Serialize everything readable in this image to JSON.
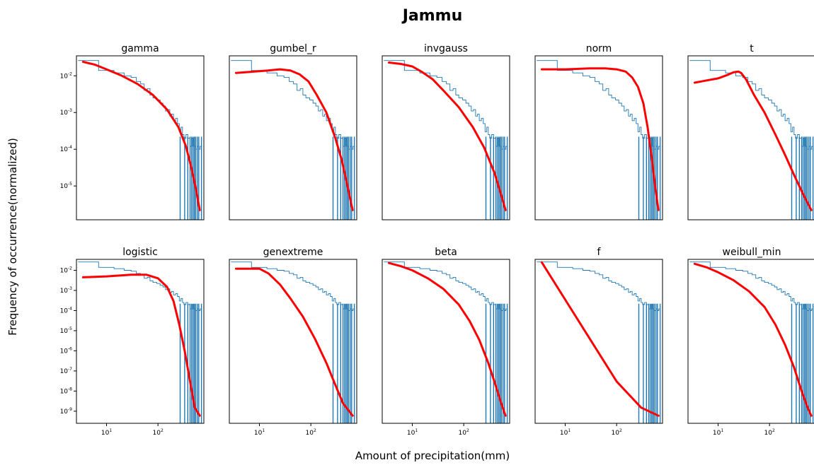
{
  "chart_data": {
    "type": "line",
    "title": "Jammu",
    "xlabel": "Amount of precipitation(mm)",
    "ylabel": "Frequency of occurrence(normalized)",
    "x_scale": "log",
    "y_scale": "log",
    "xlim": [
      2.6,
      780
    ],
    "x_ticks": [
      {
        "value": 10,
        "label": "10",
        "exp": "1"
      },
      {
        "value": 100,
        "label": "10",
        "exp": "2"
      }
    ],
    "rows": [
      {
        "ylim": [
          1.2e-06,
          0.035
        ],
        "y_ticks": [
          {
            "value": 0.01,
            "label": "10",
            "exp": "-2"
          },
          {
            "value": 0.001,
            "label": "10",
            "exp": "-3"
          },
          {
            "value": 0.0001,
            "label": "10",
            "exp": "-4"
          },
          {
            "value": 1e-05,
            "label": "10",
            "exp": "-5"
          }
        ]
      },
      {
        "ylim": [
          2.5e-10,
          0.035
        ],
        "y_ticks": [
          {
            "value": 0.01,
            "label": "10",
            "exp": "-2"
          },
          {
            "value": 0.001,
            "label": "10",
            "exp": "-3"
          },
          {
            "value": 0.0001,
            "label": "10",
            "exp": "-4"
          },
          {
            "value": 1e-05,
            "label": "10",
            "exp": "-5"
          },
          {
            "value": 1e-06,
            "label": "10",
            "exp": "-6"
          },
          {
            "value": 1e-07,
            "label": "10",
            "exp": "-7"
          },
          {
            "value": 1e-08,
            "label": "10",
            "exp": "-8"
          },
          {
            "value": 1e-09,
            "label": "10",
            "exp": "-9"
          }
        ]
      }
    ],
    "histogram": {
      "color": "#1f77b4",
      "points": [
        [
          2.8,
          0.026
        ],
        [
          7,
          0.026
        ],
        [
          7,
          0.014
        ],
        [
          14,
          0.014
        ],
        [
          14,
          0.012
        ],
        [
          22,
          0.012
        ],
        [
          22,
          0.01
        ],
        [
          30,
          0.01
        ],
        [
          30,
          0.009
        ],
        [
          38,
          0.009
        ],
        [
          38,
          0.007
        ],
        [
          46,
          0.007
        ],
        [
          46,
          0.006
        ],
        [
          54,
          0.006
        ],
        [
          54,
          0.004
        ],
        [
          62,
          0.004
        ],
        [
          62,
          0.0045
        ],
        [
          70,
          0.0045
        ],
        [
          70,
          0.003
        ],
        [
          80,
          0.003
        ],
        [
          80,
          0.0025
        ],
        [
          95,
          0.0025
        ],
        [
          95,
          0.0022
        ],
        [
          110,
          0.0022
        ],
        [
          110,
          0.0018
        ],
        [
          125,
          0.0018
        ],
        [
          125,
          0.0015
        ],
        [
          140,
          0.0015
        ],
        [
          140,
          0.0011
        ],
        [
          155,
          0.0011
        ],
        [
          155,
          0.0012
        ],
        [
          170,
          0.0012
        ],
        [
          170,
          0.0008
        ],
        [
          185,
          0.0008
        ],
        [
          185,
          0.0009
        ],
        [
          200,
          0.0009
        ],
        [
          200,
          0.0006
        ],
        [
          220,
          0.0006
        ],
        [
          220,
          0.0007
        ],
        [
          240,
          0.0007
        ],
        [
          240,
          0.0005
        ],
        [
          260,
          0.0005
        ],
        [
          260,
          0.0003
        ],
        [
          280,
          0.0003
        ],
        [
          280,
          0.0004
        ],
        [
          300,
          0.0004
        ],
        [
          300,
          0.00025
        ],
        [
          320,
          0.00025
        ],
        [
          320,
          0.0002
        ],
        [
          350,
          0.0002
        ],
        [
          350,
          0.00025
        ],
        [
          380,
          0.00025
        ],
        [
          380,
          0.0002
        ],
        [
          420,
          0.0002
        ],
        [
          420,
          0.00012
        ],
        [
          460,
          0.00012
        ],
        [
          460,
          0.0002
        ],
        [
          500,
          0.0002
        ],
        [
          500,
          0.00012
        ],
        [
          540,
          0.00012
        ],
        [
          540,
          0.0001
        ],
        [
          580,
          0.0001
        ],
        [
          580,
          0.00012
        ],
        [
          620,
          0.00012
        ],
        [
          620,
          0.0001
        ],
        [
          660,
          0.0001
        ],
        [
          660,
          0.00012
        ],
        [
          700,
          0.00012
        ]
      ],
      "spikes": [
        270,
        330,
        380,
        420,
        450,
        480,
        510,
        540,
        580,
        620,
        700
      ]
    },
    "fit_color": "#ff0000",
    "panels": [
      {
        "title": "gamma",
        "row": 0,
        "fit": [
          [
            3.5,
            0.024
          ],
          [
            6,
            0.02
          ],
          [
            10,
            0.015
          ],
          [
            20,
            0.01
          ],
          [
            40,
            0.006
          ],
          [
            80,
            0.003
          ],
          [
            150,
            0.0012
          ],
          [
            250,
            0.0004
          ],
          [
            350,
            0.00012
          ],
          [
            450,
            3e-05
          ],
          [
            550,
            8e-06
          ],
          [
            650,
            2.2e-06
          ]
        ]
      },
      {
        "title": "gumbel_r",
        "row": 0,
        "fit": [
          [
            3.5,
            0.012
          ],
          [
            8,
            0.013
          ],
          [
            15,
            0.014
          ],
          [
            25,
            0.015
          ],
          [
            40,
            0.014
          ],
          [
            60,
            0.011
          ],
          [
            90,
            0.007
          ],
          [
            130,
            0.003
          ],
          [
            200,
            0.001
          ],
          [
            300,
            0.0002
          ],
          [
            400,
            5e-05
          ],
          [
            500,
            1.2e-05
          ],
          [
            650,
            2.2e-06
          ]
        ]
      },
      {
        "title": "invgauss",
        "row": 0,
        "fit": [
          [
            3.5,
            0.023
          ],
          [
            6,
            0.021
          ],
          [
            10,
            0.018
          ],
          [
            15,
            0.013
          ],
          [
            25,
            0.008
          ],
          [
            40,
            0.004
          ],
          [
            80,
            0.0014
          ],
          [
            150,
            0.0004
          ],
          [
            250,
            0.00011
          ],
          [
            400,
            2.2e-05
          ],
          [
            550,
            5e-06
          ],
          [
            650,
            2.2e-06
          ]
        ]
      },
      {
        "title": "norm",
        "row": 0,
        "fit": [
          [
            3.5,
            0.015
          ],
          [
            10,
            0.015
          ],
          [
            30,
            0.016
          ],
          [
            60,
            0.016
          ],
          [
            100,
            0.015
          ],
          [
            150,
            0.013
          ],
          [
            200,
            0.009
          ],
          [
            260,
            0.005
          ],
          [
            330,
            0.0018
          ],
          [
            400,
            0.0004
          ],
          [
            480,
            6e-05
          ],
          [
            560,
            1e-05
          ],
          [
            650,
            2.2e-06
          ]
        ]
      },
      {
        "title": "t",
        "row": 0,
        "fit": [
          [
            3.5,
            0.0065
          ],
          [
            6,
            0.0075
          ],
          [
            10,
            0.0085
          ],
          [
            15,
            0.0105
          ],
          [
            20,
            0.0125
          ],
          [
            25,
            0.013
          ],
          [
            28,
            0.012
          ],
          [
            35,
            0.008
          ],
          [
            50,
            0.003
          ],
          [
            80,
            0.001
          ],
          [
            130,
            0.00025
          ],
          [
            200,
            7e-05
          ],
          [
            300,
            2e-05
          ],
          [
            450,
            6e-06
          ],
          [
            650,
            2.2e-06
          ]
        ]
      },
      {
        "title": "logistic",
        "row": 1,
        "fit": [
          [
            3.5,
            0.0045
          ],
          [
            10,
            0.005
          ],
          [
            30,
            0.006
          ],
          [
            60,
            0.006
          ],
          [
            100,
            0.004
          ],
          [
            150,
            0.0015
          ],
          [
            200,
            0.0003
          ],
          [
            260,
            2e-05
          ],
          [
            330,
            1e-06
          ],
          [
            420,
            3e-08
          ],
          [
            520,
            1.5e-09
          ],
          [
            650,
            6e-10
          ]
        ]
      },
      {
        "title": "genextreme",
        "row": 1,
        "fit": [
          [
            3.5,
            0.012
          ],
          [
            6,
            0.012
          ],
          [
            10,
            0.012
          ],
          [
            15,
            0.007
          ],
          [
            25,
            0.002
          ],
          [
            40,
            0.0004
          ],
          [
            70,
            5e-05
          ],
          [
            120,
            4e-06
          ],
          [
            200,
            2.5e-07
          ],
          [
            300,
            2e-08
          ],
          [
            420,
            2.5e-09
          ],
          [
            650,
            6e-10
          ]
        ]
      },
      {
        "title": "beta",
        "row": 1,
        "fit": [
          [
            3.5,
            0.023
          ],
          [
            6,
            0.016
          ],
          [
            10,
            0.01
          ],
          [
            20,
            0.004
          ],
          [
            40,
            0.0012
          ],
          [
            80,
            0.0002
          ],
          [
            130,
            3e-05
          ],
          [
            200,
            3.5e-06
          ],
          [
            300,
            2.5e-07
          ],
          [
            420,
            1.8e-08
          ],
          [
            550,
            2e-09
          ],
          [
            650,
            6e-10
          ]
        ]
      },
      {
        "title": "f",
        "row": 1,
        "fit": [
          [
            3.5,
            0.025
          ],
          [
            10,
            0.00035
          ],
          [
            30,
            4e-06
          ],
          [
            100,
            3e-08
          ],
          [
            300,
            1.5e-09
          ],
          [
            650,
            6e-10
          ]
        ]
      },
      {
        "title": "weibull_min",
        "row": 1,
        "fit": [
          [
            3.5,
            0.021
          ],
          [
            6,
            0.014
          ],
          [
            10,
            0.008
          ],
          [
            20,
            0.0032
          ],
          [
            40,
            0.0009
          ],
          [
            80,
            0.00015
          ],
          [
            130,
            2e-05
          ],
          [
            200,
            2e-06
          ],
          [
            300,
            1.5e-07
          ],
          [
            420,
            1e-08
          ],
          [
            550,
            1.5e-09
          ],
          [
            650,
            6e-10
          ]
        ]
      }
    ]
  }
}
